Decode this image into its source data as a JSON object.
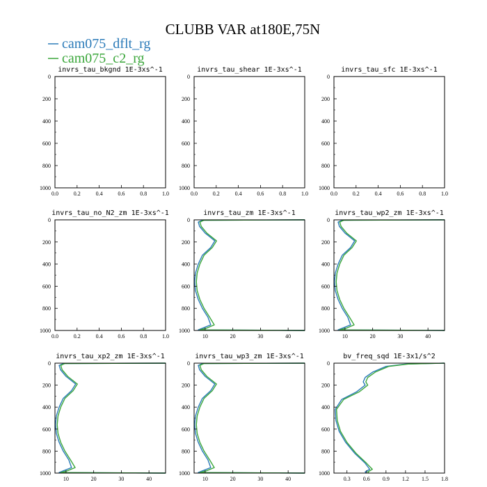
{
  "figure": {
    "title": "CLUBB VAR at180E,75N",
    "legend": [
      {
        "name": "cam075_dflt_rg",
        "color": "#2a7ab8"
      },
      {
        "name": "cam075_c2_rg",
        "color": "#3aa63a"
      }
    ]
  },
  "chart_data": [
    {
      "type": "line",
      "title": "invrs_tau_bkgnd  1E-3xs^-1",
      "xlim": [
        0,
        1
      ],
      "ylim": [
        1000,
        0
      ],
      "xticks": [
        "0.0",
        "0.2",
        "0.4",
        "0.6",
        "0.8",
        "1.0"
      ],
      "yticks": [
        "0",
        "200",
        "400",
        "600",
        "800",
        "1000"
      ],
      "series": []
    },
    {
      "type": "line",
      "title": "invrs_tau_shear  1E-3xs^-1",
      "xlim": [
        0,
        1
      ],
      "ylim": [
        1000,
        0
      ],
      "xticks": [
        "0.0",
        "0.2",
        "0.4",
        "0.6",
        "0.8",
        "1.0"
      ],
      "yticks": [
        "0",
        "200",
        "400",
        "600",
        "800",
        "1000"
      ],
      "series": []
    },
    {
      "type": "line",
      "title": "invrs_tau_sfc  1E-3xs^-1",
      "xlim": [
        0,
        1
      ],
      "ylim": [
        1000,
        0
      ],
      "xticks": [
        "0.0",
        "0.2",
        "0.4",
        "0.6",
        "0.8",
        "1.0"
      ],
      "yticks": [
        "0",
        "200",
        "400",
        "600",
        "800",
        "1000"
      ],
      "series": []
    },
    {
      "type": "line",
      "title": "invrs_tau_no_N2_zm  1E-3xs^-1",
      "xlim": [
        0,
        1
      ],
      "ylim": [
        1000,
        0
      ],
      "xticks": [
        "0.0",
        "0.2",
        "0.4",
        "0.6",
        "0.8",
        "1.0"
      ],
      "yticks": [
        "0",
        "200",
        "400",
        "600",
        "800",
        "1000"
      ],
      "series": []
    },
    {
      "type": "line",
      "title": "invrs_tau_zm  1E-3xs^-1",
      "xlim": [
        6,
        46
      ],
      "ylim": [
        1000,
        0
      ],
      "xticks": [
        "10",
        "20",
        "30",
        "40"
      ],
      "yticks": [
        "0",
        "200",
        "400",
        "600",
        "800",
        "1000"
      ],
      "series": [
        {
          "color": "#2a7ab8",
          "x": [
            46,
            9,
            7.5,
            8,
            10,
            13.5,
            12,
            9,
            7.5,
            6.5,
            6.2,
            6.5,
            7.5,
            9,
            11,
            12,
            9,
            7.5,
            46
          ],
          "y": [
            0,
            3,
            20,
            60,
            120,
            190,
            250,
            320,
            400,
            480,
            560,
            640,
            720,
            800,
            880,
            950,
            980,
            995,
            1000
          ]
        },
        {
          "color": "#3aa63a",
          "x": [
            46,
            9.6,
            8.1,
            8.6,
            10.6,
            14.1,
            12.6,
            9.6,
            8.1,
            7.1,
            6.8,
            7.1,
            8.1,
            9.6,
            11.6,
            13.3,
            10.4,
            8.1,
            46
          ],
          "y": [
            0,
            3,
            20,
            60,
            120,
            190,
            250,
            320,
            400,
            480,
            560,
            640,
            720,
            800,
            880,
            950,
            980,
            995,
            1000
          ]
        }
      ]
    },
    {
      "type": "line",
      "title": "invrs_tau_wp2_zm  1E-3xs^-1",
      "xlim": [
        6,
        46
      ],
      "ylim": [
        1000,
        0
      ],
      "xticks": [
        "10",
        "20",
        "30",
        "40"
      ],
      "yticks": [
        "0",
        "200",
        "400",
        "600",
        "800",
        "1000"
      ],
      "series": [
        {
          "color": "#2a7ab8",
          "x": [
            46,
            9,
            7.5,
            8,
            10,
            13.5,
            12,
            9,
            7.5,
            6.5,
            6.2,
            6.5,
            7.5,
            9,
            11,
            12,
            9,
            7.5,
            46
          ],
          "y": [
            0,
            3,
            20,
            60,
            120,
            190,
            250,
            320,
            400,
            480,
            560,
            640,
            720,
            800,
            880,
            950,
            980,
            995,
            1000
          ]
        },
        {
          "color": "#3aa63a",
          "x": [
            46,
            9.6,
            8.1,
            8.6,
            10.6,
            14.1,
            12.6,
            9.6,
            8.1,
            7.1,
            6.8,
            7.1,
            8.1,
            9.6,
            11.6,
            13.3,
            10.4,
            8.1,
            46
          ],
          "y": [
            0,
            3,
            20,
            60,
            120,
            190,
            250,
            320,
            400,
            480,
            560,
            640,
            720,
            800,
            880,
            950,
            980,
            995,
            1000
          ]
        }
      ]
    },
    {
      "type": "line",
      "title": "invrs_tau_xp2_zm  1E-3xs^-1",
      "xlim": [
        6,
        46
      ],
      "ylim": [
        1000,
        0
      ],
      "xticks": [
        "10",
        "20",
        "30",
        "40"
      ],
      "yticks": [
        "0",
        "200",
        "400",
        "600",
        "800",
        "1000"
      ],
      "series": [
        {
          "color": "#2a7ab8",
          "x": [
            46,
            9,
            7.5,
            8,
            10,
            13.5,
            12,
            9,
            7.5,
            6.5,
            6.2,
            6.5,
            7.5,
            9,
            11,
            12,
            9,
            7.5,
            46
          ],
          "y": [
            0,
            3,
            20,
            60,
            120,
            190,
            250,
            320,
            400,
            480,
            560,
            640,
            720,
            800,
            880,
            950,
            980,
            995,
            1000
          ]
        },
        {
          "color": "#3aa63a",
          "x": [
            46,
            9.6,
            8.1,
            8.6,
            10.6,
            14.1,
            12.6,
            9.6,
            8.1,
            7.1,
            6.8,
            7.1,
            8.1,
            9.6,
            11.6,
            13.3,
            10.4,
            8.1,
            46
          ],
          "y": [
            0,
            3,
            20,
            60,
            120,
            190,
            250,
            320,
            400,
            480,
            560,
            640,
            720,
            800,
            880,
            950,
            980,
            995,
            1000
          ]
        }
      ]
    },
    {
      "type": "line",
      "title": "invrs_tau_wp3_zm  1E-3xs^-1",
      "xlim": [
        6,
        46
      ],
      "ylim": [
        1000,
        0
      ],
      "xticks": [
        "10",
        "20",
        "30",
        "40"
      ],
      "yticks": [
        "0",
        "200",
        "400",
        "600",
        "800",
        "1000"
      ],
      "series": [
        {
          "color": "#2a7ab8",
          "x": [
            46,
            9,
            7.5,
            8,
            10,
            13.5,
            12,
            9,
            7.5,
            6.5,
            6.2,
            6.5,
            7.5,
            9,
            11,
            12,
            9,
            7.5,
            46
          ],
          "y": [
            0,
            3,
            20,
            60,
            120,
            190,
            250,
            320,
            400,
            480,
            560,
            640,
            720,
            800,
            880,
            950,
            980,
            995,
            1000
          ]
        },
        {
          "color": "#3aa63a",
          "x": [
            46,
            9.6,
            8.1,
            8.6,
            10.6,
            14.1,
            12.6,
            9.6,
            8.1,
            7.1,
            6.8,
            7.1,
            8.1,
            9.6,
            11.6,
            13.3,
            10.4,
            8.1,
            46
          ],
          "y": [
            0,
            3,
            20,
            60,
            120,
            190,
            250,
            320,
            400,
            480,
            560,
            640,
            720,
            800,
            880,
            950,
            980,
            995,
            1000
          ]
        }
      ]
    },
    {
      "type": "line",
      "title": "bv_freq_sqd  1E-3x1/s^2",
      "xlim": [
        0.1,
        1.8
      ],
      "ylim": [
        1000,
        0
      ],
      "xticks": [
        "0.3",
        "0.6",
        "0.9",
        "1.2",
        "1.5",
        "1.8"
      ],
      "yticks": [
        "0",
        "200",
        "400",
        "600",
        "800",
        "1000"
      ],
      "series": [
        {
          "color": "#2a7ab8",
          "x": [
            1.8,
            1.2,
            0.9,
            0.7,
            0.58,
            0.55,
            0.58,
            0.45,
            0.22,
            0.12,
            0.13,
            0.18,
            0.28,
            0.42,
            0.58,
            0.65,
            0.58,
            0.6
          ],
          "y": [
            0,
            8,
            30,
            80,
            130,
            170,
            200,
            260,
            330,
            420,
            520,
            620,
            720,
            820,
            910,
            965,
            990,
            1000
          ]
        },
        {
          "color": "#3aa63a",
          "x": [
            1.8,
            1.24,
            0.94,
            0.74,
            0.62,
            0.59,
            0.62,
            0.49,
            0.25,
            0.14,
            0.15,
            0.2,
            0.3,
            0.44,
            0.6,
            0.69,
            0.62,
            0.64
          ],
          "y": [
            0,
            8,
            30,
            80,
            130,
            170,
            200,
            260,
            330,
            420,
            520,
            620,
            720,
            820,
            910,
            965,
            990,
            1000
          ]
        }
      ]
    }
  ]
}
